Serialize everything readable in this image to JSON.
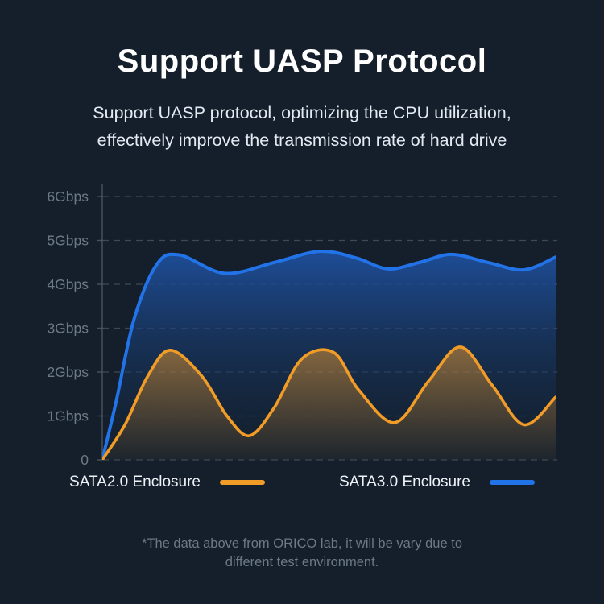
{
  "header": {
    "title": "Support UASP Protocol",
    "subtitle_line1": "Support UASP protocol, optimizing the CPU utilization,",
    "subtitle_line2": "effectively improve the transmission rate of hard drive"
  },
  "chart_data": {
    "type": "area",
    "title": "",
    "xlabel": "",
    "ylabel": "Gbps",
    "ylim": [
      0,
      6
    ],
    "x_units": "fraction of test run (no x-axis labels shown)",
    "y_units": "Gbps",
    "grid": "dashed horizontal gridlines at every 1 Gbps, solid y-axis on left, no x-axis labels",
    "legend_position": "bottom",
    "background_color": "#141F2B",
    "axis_color": "#4B5864",
    "tick_label_color": "#6E7988",
    "yticks": [
      {
        "value": 6,
        "label": "6Gbps"
      },
      {
        "value": 5,
        "label": "5Gbps"
      },
      {
        "value": 4,
        "label": "4Gbps"
      },
      {
        "value": 3,
        "label": "3Gbps"
      },
      {
        "value": 2,
        "label": "2Gbps"
      },
      {
        "value": 1,
        "label": "1Gbps"
      },
      {
        "value": 0,
        "label": "0"
      }
    ],
    "series": [
      {
        "name": "SATA2.0 Enclosure",
        "color": "#F29C28",
        "fill_top": "rgba(242,156,40,0.50)",
        "fill_bottom": "rgba(242,156,40,0.04)",
        "x": [
          0,
          0.05,
          0.1,
          0.15,
          0.22,
          0.275,
          0.325,
          0.38,
          0.44,
          0.51,
          0.565,
          0.645,
          0.72,
          0.79,
          0.86,
          0.93,
          1.0
        ],
        "y": [
          0,
          0.8,
          1.9,
          2.5,
          1.9,
          1.0,
          0.55,
          1.2,
          2.3,
          2.45,
          1.6,
          0.85,
          1.8,
          2.57,
          1.7,
          0.8,
          1.43
        ]
      },
      {
        "name": "SATA3.0 Enclosure",
        "color": "#2273E8",
        "fill_top": "rgba(30,80,158,0.95)",
        "fill_bottom": "rgba(19,37,60,0.15)",
        "x": [
          0,
          0.03,
          0.07,
          0.12,
          0.17,
          0.27,
          0.38,
          0.48,
          0.56,
          0.63,
          0.7,
          0.77,
          0.85,
          0.93,
          1.0
        ],
        "y": [
          0,
          1.3,
          3.2,
          4.45,
          4.67,
          4.25,
          4.5,
          4.75,
          4.6,
          4.35,
          4.5,
          4.68,
          4.5,
          4.33,
          4.62
        ]
      }
    ]
  },
  "legend": {
    "items": [
      {
        "label": "SATA2.0 Enclosure"
      },
      {
        "label": "SATA3.0 Enclosure"
      }
    ]
  },
  "footnote": {
    "line1": "*The data above from ORICO lab, it will be vary due to",
    "line2": "different test environment."
  }
}
